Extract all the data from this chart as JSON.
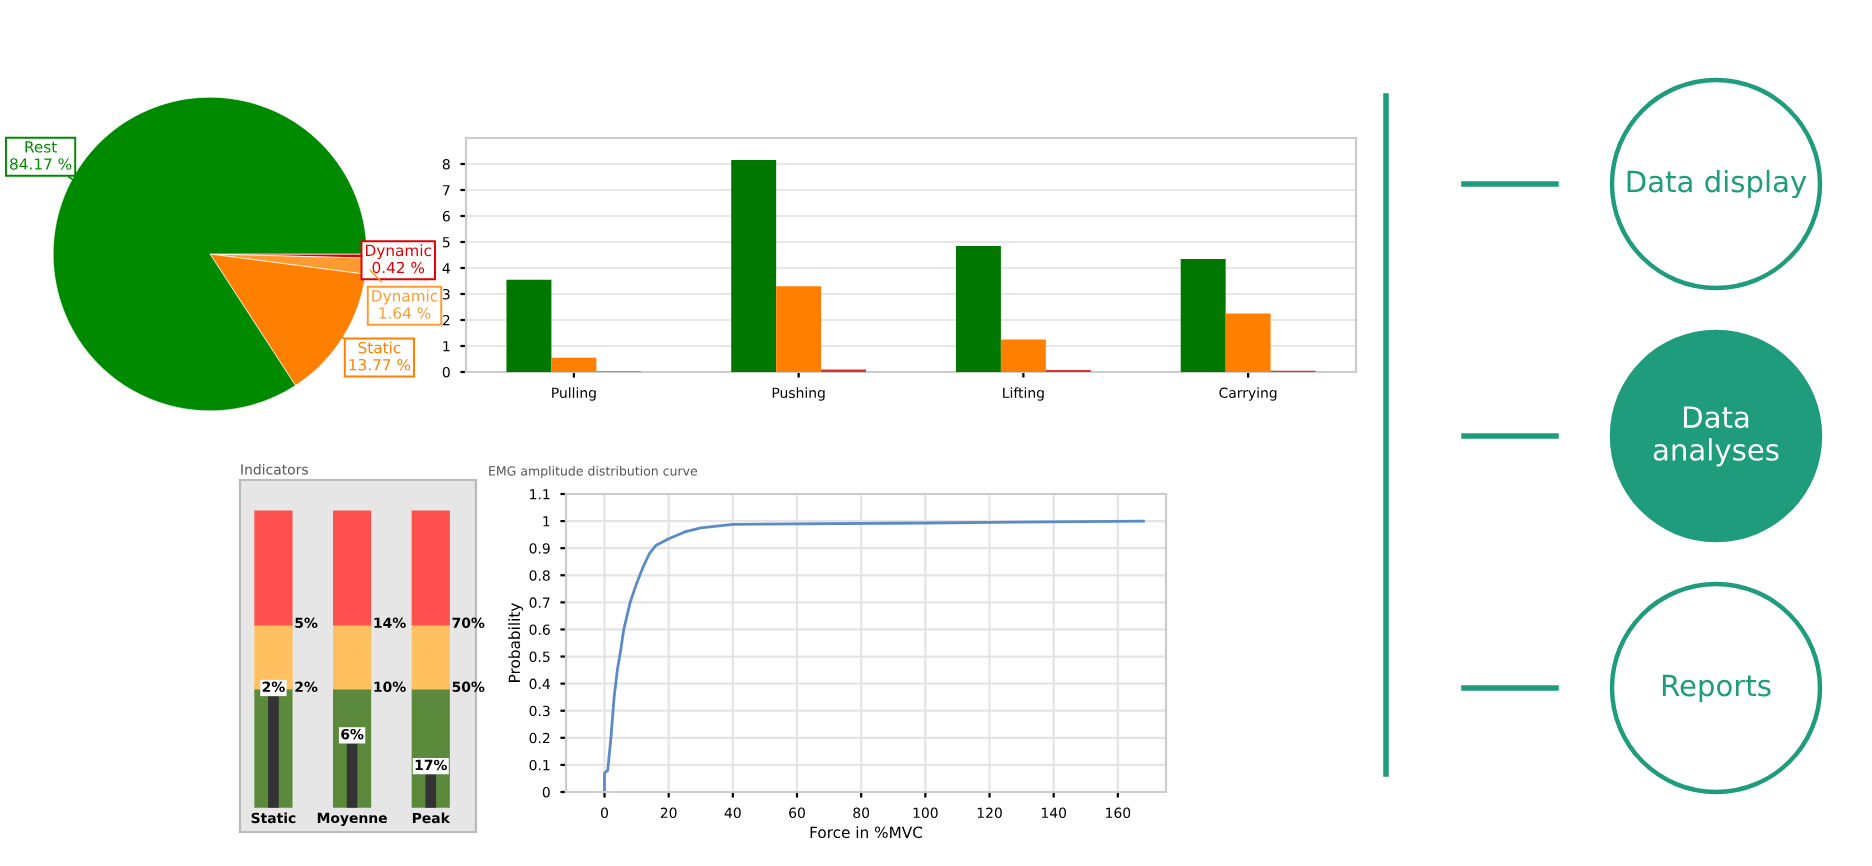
{
  "chart_data": [
    {
      "type": "pie",
      "categories": [
        "Dynamic",
        "Dynamic",
        "Static",
        "Rest"
      ],
      "values": [
        0.42,
        1.64,
        13.77,
        84.17
      ],
      "value_labels": [
        "0.42 %",
        "1.64 %",
        "13.77 %",
        "84.17 %"
      ],
      "colors": [
        "#e00000",
        "#ff9a30",
        "#ff8000",
        "#008a00"
      ]
    },
    {
      "type": "bar",
      "categories": [
        "Pulling",
        "Pushing",
        "Lifting",
        "Carrying"
      ],
      "series": [
        {
          "color": "#007800",
          "values": [
            3.55,
            8.15,
            4.85,
            4.35
          ]
        },
        {
          "color": "#ff8000",
          "values": [
            0.55,
            3.3,
            1.25,
            2.25
          ]
        },
        {
          "color": "#e03030",
          "values": [
            0.02,
            0.1,
            0.08,
            0.05
          ]
        }
      ],
      "ylim": [
        0,
        9
      ],
      "yticks": [
        0,
        1,
        2,
        3,
        4,
        5,
        6,
        7,
        8
      ],
      "grid": "y"
    },
    {
      "type": "other",
      "title": "Indicators",
      "categories": [
        "Static",
        "Moyenne",
        "Peak"
      ],
      "series": [
        {
          "values": [
            2,
            6,
            17
          ],
          "value_labels": [
            "2%",
            "6%",
            "17%"
          ]
        },
        {
          "values": [
            2,
            10,
            50
          ],
          "value_labels": [
            "2%",
            "10%",
            "50%"
          ]
        },
        {
          "values": [
            5,
            14,
            70
          ],
          "value_labels": [
            "5%",
            "14%",
            "70%"
          ]
        }
      ],
      "colors": [
        "#5c8a3c",
        "#ffc060",
        "#ff5050"
      ]
    },
    {
      "type": "line",
      "title": "EMG amplitude distribution curve",
      "xlabel": "Force in %MVC",
      "ylabel": "Probability",
      "series": [
        {
          "color": "#5b8ac6",
          "x": [
            0,
            0,
            1,
            2,
            3,
            4,
            5,
            6,
            8,
            10,
            12,
            14,
            16,
            20,
            25,
            30,
            40,
            60,
            100,
            168
          ],
          "values": [
            0,
            0.07,
            0.08,
            0.2,
            0.35,
            0.45,
            0.52,
            0.6,
            0.7,
            0.77,
            0.83,
            0.88,
            0.91,
            0.935,
            0.96,
            0.975,
            0.988,
            0.99,
            0.993,
            1.0
          ]
        }
      ],
      "xlim": [
        -12,
        175
      ],
      "xticks": [
        0,
        20,
        40,
        60,
        80,
        100,
        120,
        140,
        160
      ],
      "ylim": [
        0,
        1.1
      ],
      "yticks": [
        0,
        0.1,
        0.2,
        0.3,
        0.4,
        0.5,
        0.6,
        0.7,
        0.8,
        0.9,
        1,
        1.1
      ],
      "grid": true
    },
    {
      "type": "other",
      "categories": [
        "Data display",
        "Data analyses",
        "Reports"
      ],
      "colors": [
        "#ffffff",
        "#1f9c7c",
        "#ffffff"
      ]
    }
  ]
}
